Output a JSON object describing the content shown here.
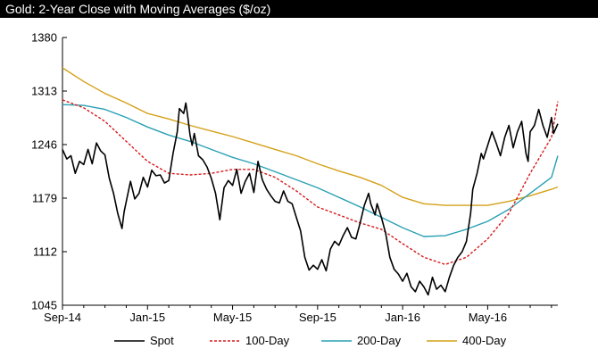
{
  "chart_data": {
    "type": "line",
    "title": "Gold: 2-Year Close with Moving Averages ($/oz)",
    "xlabel": "",
    "ylabel": "",
    "ylim": [
      1045,
      1380
    ],
    "y_ticks": [
      "1380",
      "1313",
      "1246",
      "1179",
      "1112",
      "1045"
    ],
    "x_ticks": [
      "Sep-14",
      "Jan-15",
      "May-15",
      "Sep-15",
      "Jan-16",
      "May-16"
    ],
    "x_range_months": [
      0,
      23.3
    ],
    "grid": false,
    "legend_placement": "bottom",
    "series": [
      {
        "name": "Spot",
        "color": "#000000",
        "dash": "",
        "points": [
          [
            0.0,
            1240
          ],
          [
            0.2,
            1228
          ],
          [
            0.4,
            1232
          ],
          [
            0.6,
            1210
          ],
          [
            0.8,
            1225
          ],
          [
            1.0,
            1221
          ],
          [
            1.2,
            1240
          ],
          [
            1.4,
            1222
          ],
          [
            1.6,
            1248
          ],
          [
            1.8,
            1238
          ],
          [
            2.0,
            1233
          ],
          [
            2.2,
            1204
          ],
          [
            2.4,
            1185
          ],
          [
            2.6,
            1160
          ],
          [
            2.8,
            1141
          ],
          [
            2.9,
            1162
          ],
          [
            3.0,
            1175
          ],
          [
            3.2,
            1200
          ],
          [
            3.4,
            1178
          ],
          [
            3.6,
            1185
          ],
          [
            3.8,
            1205
          ],
          [
            4.0,
            1193
          ],
          [
            4.2,
            1214
          ],
          [
            4.4,
            1207
          ],
          [
            4.6,
            1208
          ],
          [
            4.8,
            1198
          ],
          [
            5.0,
            1201
          ],
          [
            5.2,
            1235
          ],
          [
            5.4,
            1262
          ],
          [
            5.5,
            1291
          ],
          [
            5.7,
            1285
          ],
          [
            5.8,
            1298
          ],
          [
            5.9,
            1280
          ],
          [
            6.0,
            1258
          ],
          [
            6.1,
            1245
          ],
          [
            6.2,
            1260
          ],
          [
            6.4,
            1232
          ],
          [
            6.6,
            1227
          ],
          [
            6.8,
            1218
          ],
          [
            7.0,
            1204
          ],
          [
            7.2,
            1185
          ],
          [
            7.4,
            1152
          ],
          [
            7.6,
            1192
          ],
          [
            7.8,
            1201
          ],
          [
            8.0,
            1195
          ],
          [
            8.2,
            1215
          ],
          [
            8.4,
            1185
          ],
          [
            8.6,
            1200
          ],
          [
            8.8,
            1210
          ],
          [
            9.0,
            1186
          ],
          [
            9.2,
            1225
          ],
          [
            9.4,
            1202
          ],
          [
            9.6,
            1190
          ],
          [
            9.8,
            1182
          ],
          [
            10.0,
            1175
          ],
          [
            10.2,
            1173
          ],
          [
            10.4,
            1188
          ],
          [
            10.6,
            1175
          ],
          [
            10.8,
            1172
          ],
          [
            11.0,
            1155
          ],
          [
            11.2,
            1138
          ],
          [
            11.4,
            1105
          ],
          [
            11.6,
            1089
          ],
          [
            11.8,
            1095
          ],
          [
            12.0,
            1090
          ],
          [
            12.2,
            1102
          ],
          [
            12.4,
            1088
          ],
          [
            12.6,
            1115
          ],
          [
            12.8,
            1125
          ],
          [
            13.0,
            1120
          ],
          [
            13.2,
            1132
          ],
          [
            13.4,
            1142
          ],
          [
            13.6,
            1130
          ],
          [
            13.8,
            1128
          ],
          [
            14.0,
            1148
          ],
          [
            14.2,
            1170
          ],
          [
            14.4,
            1185
          ],
          [
            14.5,
            1172
          ],
          [
            14.7,
            1158
          ],
          [
            14.8,
            1172
          ],
          [
            15.0,
            1155
          ],
          [
            15.2,
            1135
          ],
          [
            15.4,
            1105
          ],
          [
            15.6,
            1090
          ],
          [
            15.8,
            1084
          ],
          [
            16.0,
            1075
          ],
          [
            16.2,
            1085
          ],
          [
            16.4,
            1068
          ],
          [
            16.6,
            1062
          ],
          [
            16.8,
            1075
          ],
          [
            17.0,
            1068
          ],
          [
            17.2,
            1058
          ],
          [
            17.4,
            1080
          ],
          [
            17.6,
            1065
          ],
          [
            17.8,
            1070
          ],
          [
            18.0,
            1062
          ],
          [
            18.2,
            1080
          ],
          [
            18.4,
            1095
          ],
          [
            18.6,
            1105
          ],
          [
            18.8,
            1112
          ],
          [
            19.0,
            1125
          ],
          [
            19.2,
            1160
          ],
          [
            19.3,
            1190
          ],
          [
            19.5,
            1210
          ],
          [
            19.7,
            1235
          ],
          [
            19.8,
            1228
          ],
          [
            20.0,
            1245
          ],
          [
            20.2,
            1262
          ],
          [
            20.4,
            1248
          ],
          [
            20.6,
            1232
          ],
          [
            20.8,
            1255
          ],
          [
            21.0,
            1270
          ],
          [
            21.2,
            1242
          ],
          [
            21.4,
            1262
          ],
          [
            21.6,
            1275
          ],
          [
            21.8,
            1235
          ],
          [
            21.9,
            1225
          ],
          [
            22.0,
            1262
          ],
          [
            22.2,
            1270
          ],
          [
            22.4,
            1290
          ],
          [
            22.6,
            1270
          ],
          [
            22.8,
            1255
          ],
          [
            23.0,
            1280
          ],
          [
            23.1,
            1260
          ],
          [
            23.3,
            1272
          ]
        ]
      },
      {
        "name": "100-Day",
        "color": "#d7191c",
        "dash": "3,2",
        "points": [
          [
            0.0,
            1302
          ],
          [
            1.0,
            1292
          ],
          [
            2.0,
            1275
          ],
          [
            3.0,
            1250
          ],
          [
            4.0,
            1225
          ],
          [
            5.0,
            1210
          ],
          [
            6.0,
            1208
          ],
          [
            7.0,
            1210
          ],
          [
            8.0,
            1215
          ],
          [
            9.0,
            1215
          ],
          [
            10.0,
            1205
          ],
          [
            11.0,
            1188
          ],
          [
            12.0,
            1168
          ],
          [
            13.0,
            1158
          ],
          [
            14.0,
            1148
          ],
          [
            15.0,
            1140
          ],
          [
            16.0,
            1122
          ],
          [
            17.0,
            1105
          ],
          [
            18.0,
            1096
          ],
          [
            19.0,
            1105
          ],
          [
            20.0,
            1128
          ],
          [
            21.0,
            1160
          ],
          [
            22.0,
            1210
          ],
          [
            23.0,
            1255
          ],
          [
            23.3,
            1300
          ]
        ]
      },
      {
        "name": "200-Day",
        "color": "#2aa0b4",
        "dash": "",
        "points": [
          [
            0.0,
            1296
          ],
          [
            1.0,
            1295
          ],
          [
            2.0,
            1290
          ],
          [
            3.0,
            1280
          ],
          [
            4.0,
            1268
          ],
          [
            5.0,
            1258
          ],
          [
            6.0,
            1250
          ],
          [
            7.0,
            1240
          ],
          [
            8.0,
            1230
          ],
          [
            9.0,
            1222
          ],
          [
            10.0,
            1212
          ],
          [
            11.0,
            1202
          ],
          [
            12.0,
            1192
          ],
          [
            13.0,
            1180
          ],
          [
            14.0,
            1168
          ],
          [
            15.0,
            1155
          ],
          [
            16.0,
            1142
          ],
          [
            17.0,
            1131
          ],
          [
            18.0,
            1132
          ],
          [
            19.0,
            1140
          ],
          [
            20.0,
            1150
          ],
          [
            21.0,
            1165
          ],
          [
            22.0,
            1185
          ],
          [
            23.0,
            1205
          ],
          [
            23.3,
            1232
          ]
        ]
      },
      {
        "name": "400-Day",
        "color": "#d4a017",
        "dash": "",
        "points": [
          [
            0.0,
            1342
          ],
          [
            1.0,
            1325
          ],
          [
            2.0,
            1310
          ],
          [
            3.0,
            1298
          ],
          [
            4.0,
            1285
          ],
          [
            5.0,
            1278
          ],
          [
            6.0,
            1270
          ],
          [
            7.0,
            1263
          ],
          [
            8.0,
            1256
          ],
          [
            9.0,
            1248
          ],
          [
            10.0,
            1240
          ],
          [
            11.0,
            1232
          ],
          [
            12.0,
            1222
          ],
          [
            13.0,
            1213
          ],
          [
            14.0,
            1205
          ],
          [
            15.0,
            1195
          ],
          [
            16.0,
            1180
          ],
          [
            17.0,
            1172
          ],
          [
            18.0,
            1170
          ],
          [
            19.0,
            1170
          ],
          [
            20.0,
            1170
          ],
          [
            21.0,
            1175
          ],
          [
            22.0,
            1182
          ],
          [
            23.0,
            1190
          ],
          [
            23.3,
            1193
          ]
        ]
      }
    ]
  }
}
